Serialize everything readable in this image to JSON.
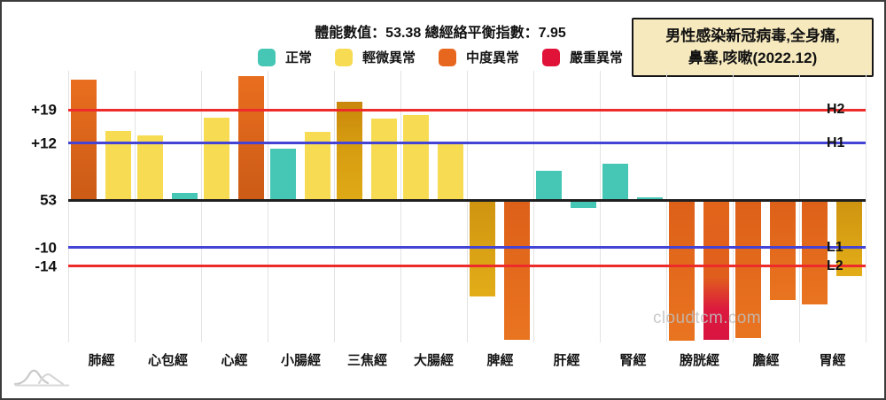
{
  "title": "體能數值：53.38 總經絡平衡指數：7.95",
  "info_box": {
    "line1": "男性感染新冠病毒,全身痛,",
    "line2": "鼻塞,咳嗽(2022.12)"
  },
  "watermark": "cloudtcm.com",
  "legend": [
    {
      "label": "正常",
      "level": "normal",
      "color": "#46c6b4"
    },
    {
      "label": "輕微異常",
      "level": "mild",
      "color": "#f7db53"
    },
    {
      "label": "中度異常",
      "level": "moderate",
      "color": "#e8671e"
    },
    {
      "label": "嚴重異常",
      "level": "severe",
      "color": "#e01238"
    }
  ],
  "colors": {
    "normal": "#46c6b4",
    "mild": "#f7db53",
    "mild_dark": "#d59b10",
    "moderate": "#e2651b",
    "severe": "#db1a38",
    "line_red": "#ee2b2b",
    "line_blue": "#4343d6",
    "baseline": "#1f1f1f",
    "grid": "#e3e3e3",
    "info_box_bg": "#f6e9be",
    "watermark_gray": "#bebebe"
  },
  "axis": {
    "baseline_label": "53",
    "y_labels": [
      {
        "text": "+19",
        "value": 19
      },
      {
        "text": "+12",
        "value": 12
      },
      {
        "text": "53",
        "value": 0
      },
      {
        "text": "-10",
        "value": -10
      },
      {
        "text": "-14",
        "value": -14
      }
    ],
    "threshold_lines": [
      {
        "name": "H2",
        "value": 19,
        "color": "red"
      },
      {
        "name": "H1",
        "value": 12,
        "color": "blue"
      },
      {
        "name": "L1",
        "value": -10,
        "color": "blue"
      },
      {
        "name": "L2",
        "value": -14,
        "color": "red"
      }
    ]
  },
  "chart_data": {
    "type": "bar",
    "title": "體能數值：53.38 總經絡平衡指數：7.95",
    "subtitle_note": "男性感染新冠病毒,全身痛,鼻塞,咳嗽(2022.12)",
    "xlabel": "",
    "ylabel": "",
    "ylim": [
      -30,
      27
    ],
    "baseline_mean": 53.38,
    "balance_index": 7.95,
    "thresholds": {
      "H2": 19,
      "H1": 12,
      "L1": -10,
      "L2": -14
    },
    "legend_position": "top",
    "grid": "vertical-only",
    "categories": [
      "肺經",
      "心包經",
      "心經",
      "小腸經",
      "三焦經",
      "大腸經",
      "脾經",
      "肝經",
      "腎經",
      "膀胱經",
      "膽經",
      "胃經"
    ],
    "bars": [
      {
        "category": "肺經",
        "values": [
          {
            "v": 25.4,
            "level": "moderate"
          },
          {
            "v": 14.6,
            "level": "mild"
          }
        ]
      },
      {
        "category": "心包經",
        "values": [
          {
            "v": 13.6,
            "level": "mild"
          },
          {
            "v": 1.5,
            "level": "normal"
          }
        ]
      },
      {
        "category": "心經",
        "values": [
          {
            "v": 17.4,
            "level": "mild"
          },
          {
            "v": 26.2,
            "level": "moderate"
          }
        ]
      },
      {
        "category": "小腸經",
        "values": [
          {
            "v": 10.8,
            "level": "normal"
          },
          {
            "v": 14.4,
            "level": "mild"
          }
        ]
      },
      {
        "category": "三焦經",
        "values": [
          {
            "v": 20.7,
            "level": "mild_dark"
          },
          {
            "v": 17.2,
            "level": "mild"
          }
        ]
      },
      {
        "category": "大腸經",
        "values": [
          {
            "v": 17.9,
            "level": "mild"
          },
          {
            "v": 11.8,
            "level": "mild"
          }
        ]
      },
      {
        "category": "脾經",
        "values": [
          {
            "v": -20.4,
            "level": "mild_dark"
          },
          {
            "v": -29.5,
            "level": "moderate"
          }
        ]
      },
      {
        "category": "肝經",
        "values": [
          {
            "v": 6.2,
            "level": "normal"
          },
          {
            "v": -1.7,
            "level": "normal"
          }
        ]
      },
      {
        "category": "腎經",
        "values": [
          {
            "v": 7.7,
            "level": "normal"
          },
          {
            "v": 0.6,
            "level": "normal"
          }
        ]
      },
      {
        "category": "膀胱經",
        "values": [
          {
            "v": -29.7,
            "level": "moderate"
          },
          {
            "v": -29.5,
            "level": "moderate_severe"
          }
        ]
      },
      {
        "category": "膽經",
        "values": [
          {
            "v": -29.2,
            "level": "moderate"
          },
          {
            "v": -21.1,
            "level": "moderate"
          }
        ]
      },
      {
        "category": "胃經",
        "values": [
          {
            "v": -22.1,
            "level": "moderate"
          },
          {
            "v": -16.1,
            "level": "mild_dark"
          }
        ]
      }
    ]
  }
}
